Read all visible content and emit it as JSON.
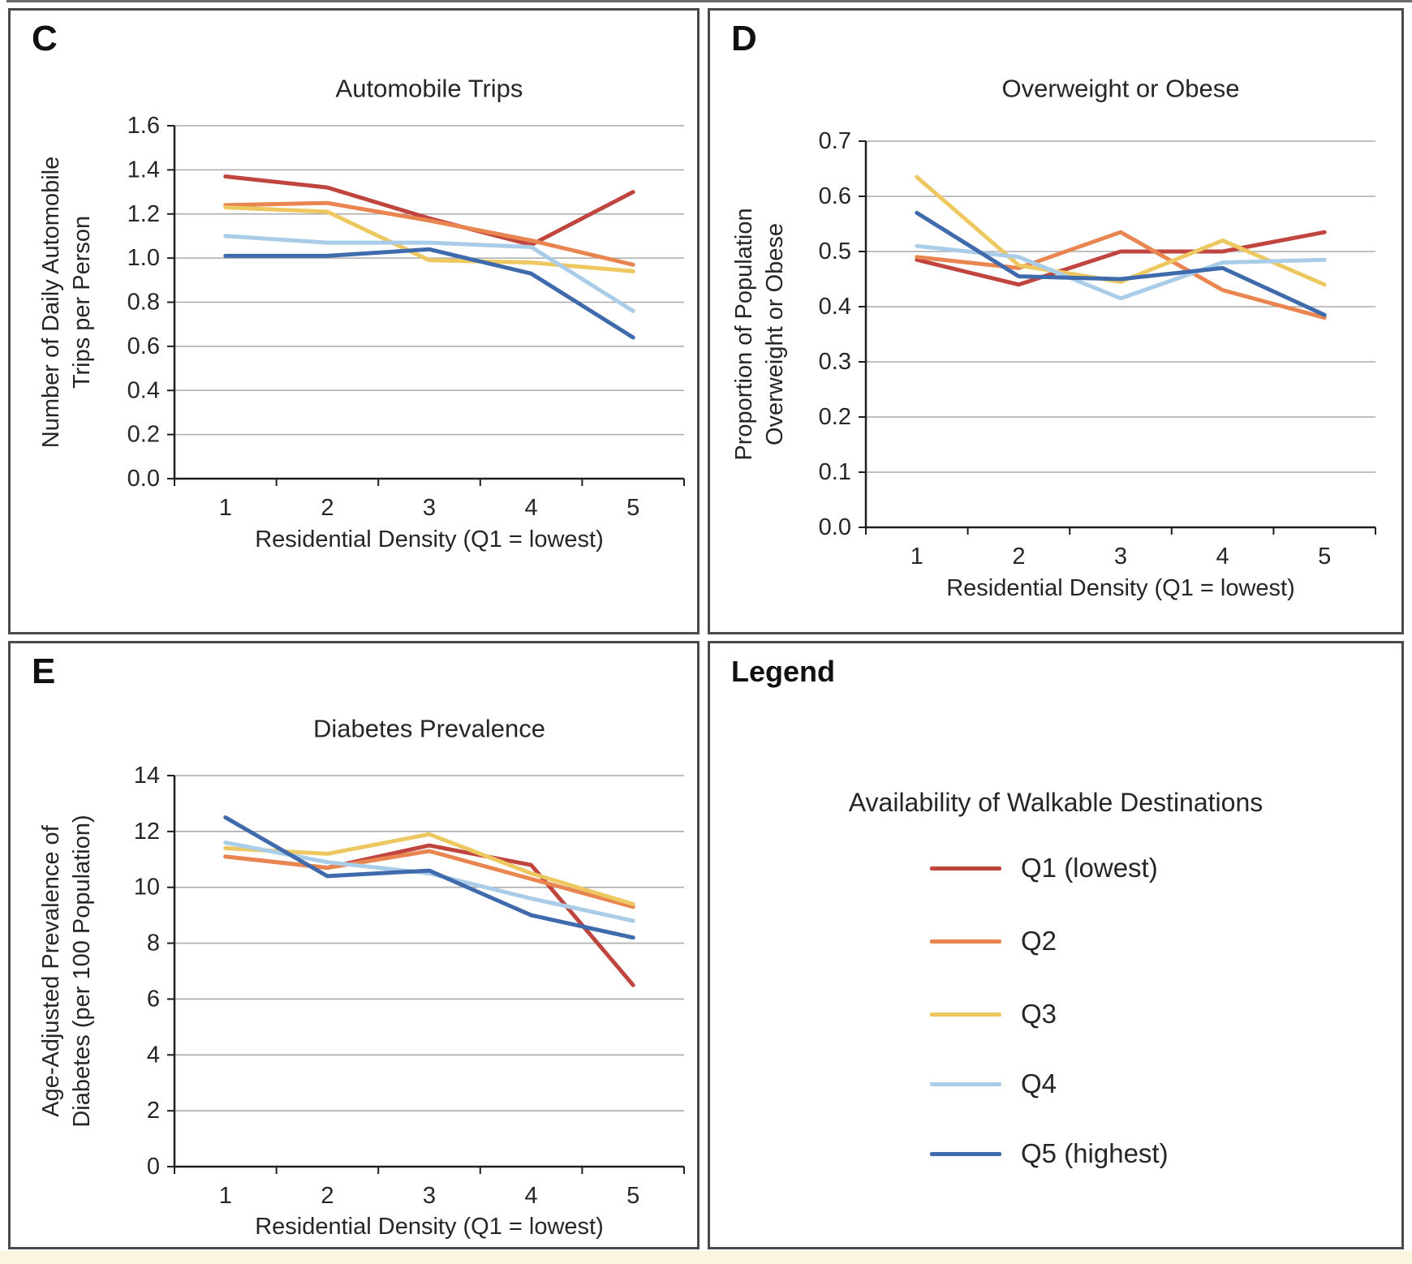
{
  "page": {
    "top_rule_color": "#6a6a6a",
    "bottom_strip_color": "#FAF6DE"
  },
  "panels": {
    "c": {
      "label": "C"
    },
    "d": {
      "label": "D"
    },
    "e": {
      "label": "E"
    }
  },
  "legend": {
    "heading": "Legend",
    "title": "Availability of Walkable Destinations",
    "entries": [
      {
        "label": "Q1 (lowest)",
        "color": "#C0453F"
      },
      {
        "label": "Q2",
        "color": "#E98550"
      },
      {
        "label": "Q3",
        "color": "#EDC75F"
      },
      {
        "label": "Q4",
        "color": "#A9CCE9"
      },
      {
        "label": "Q5 (highest)",
        "color": "#3F6BAD"
      }
    ]
  },
  "chart_data": [
    {
      "id": "C",
      "type": "line",
      "title": "Automobile Trips",
      "xlabel": "Residential Density (Q1 = lowest)",
      "ylabel_lines": [
        "Number of Daily Automobile",
        "Trips per Person"
      ],
      "x": [
        "1",
        "2",
        "3",
        "4",
        "5"
      ],
      "ylim": [
        0,
        1.6
      ],
      "ytick_labels": [
        "0.0",
        "0.2",
        "0.4",
        "0.6",
        "0.8",
        "1.0",
        "1.2",
        "1.4",
        "1.6"
      ],
      "grid": true,
      "legend_position": "separate-panel",
      "series": [
        {
          "name": "Q1 (lowest)",
          "color": "#C0453F",
          "values": [
            1.37,
            1.32,
            1.18,
            1.06,
            1.3
          ]
        },
        {
          "name": "Q2",
          "color": "#E98550",
          "values": [
            1.24,
            1.25,
            1.17,
            1.08,
            0.97
          ]
        },
        {
          "name": "Q3",
          "color": "#EDC75F",
          "values": [
            1.23,
            1.21,
            0.99,
            0.98,
            0.94
          ]
        },
        {
          "name": "Q4",
          "color": "#A9CCE9",
          "values": [
            1.1,
            1.07,
            1.07,
            1.05,
            0.76
          ]
        },
        {
          "name": "Q5 (highest)",
          "color": "#3F6BAD",
          "values": [
            1.01,
            1.01,
            1.04,
            0.93,
            0.64
          ]
        }
      ]
    },
    {
      "id": "D",
      "type": "line",
      "title": "Overweight or Obese",
      "xlabel": "Residential Density (Q1 = lowest)",
      "ylabel_lines": [
        "Proportion of Population",
        "Overweight or Obese"
      ],
      "x": [
        "1",
        "2",
        "3",
        "4",
        "5"
      ],
      "ylim": [
        0,
        0.7
      ],
      "ytick_labels": [
        "0.0",
        "0.1",
        "0.2",
        "0.3",
        "0.4",
        "0.5",
        "0.6",
        "0.7"
      ],
      "grid": true,
      "legend_position": "separate-panel",
      "series": [
        {
          "name": "Q1 (lowest)",
          "color": "#C0453F",
          "values": [
            0.485,
            0.44,
            0.5,
            0.5,
            0.535
          ]
        },
        {
          "name": "Q2",
          "color": "#E98550",
          "values": [
            0.49,
            0.47,
            0.535,
            0.43,
            0.38
          ]
        },
        {
          "name": "Q3",
          "color": "#EDC75F",
          "values": [
            0.635,
            0.475,
            0.445,
            0.52,
            0.44
          ]
        },
        {
          "name": "Q4",
          "color": "#A9CCE9",
          "values": [
            0.51,
            0.49,
            0.415,
            0.48,
            0.485
          ]
        },
        {
          "name": "Q5 (highest)",
          "color": "#3F6BAD",
          "values": [
            0.57,
            0.455,
            0.45,
            0.47,
            0.385
          ]
        }
      ]
    },
    {
      "id": "E",
      "type": "line",
      "title": "Diabetes Prevalence",
      "xlabel": "Residential Density (Q1 = lowest)",
      "ylabel_lines": [
        "Age-Adjusted Prevalence of",
        "Diabetes (per 100 Population)"
      ],
      "x": [
        "1",
        "2",
        "3",
        "4",
        "5"
      ],
      "ylim": [
        0,
        14
      ],
      "ytick_labels": [
        "0",
        "2",
        "4",
        "6",
        "8",
        "10",
        "12",
        "14"
      ],
      "grid": true,
      "legend_position": "separate-panel",
      "series": [
        {
          "name": "Q1 (lowest)",
          "color": "#C0453F",
          "values": [
            11.1,
            10.7,
            11.5,
            10.8,
            6.5
          ]
        },
        {
          "name": "Q2",
          "color": "#E98550",
          "values": [
            11.1,
            10.7,
            11.3,
            10.3,
            9.3
          ]
        },
        {
          "name": "Q3",
          "color": "#EDC75F",
          "values": [
            11.4,
            11.2,
            11.9,
            10.5,
            9.4
          ]
        },
        {
          "name": "Q4",
          "color": "#A9CCE9",
          "values": [
            11.6,
            10.9,
            10.5,
            9.6,
            8.8
          ]
        },
        {
          "name": "Q5 (highest)",
          "color": "#3F6BAD",
          "values": [
            12.5,
            10.4,
            10.6,
            9.0,
            8.2
          ]
        }
      ]
    }
  ]
}
